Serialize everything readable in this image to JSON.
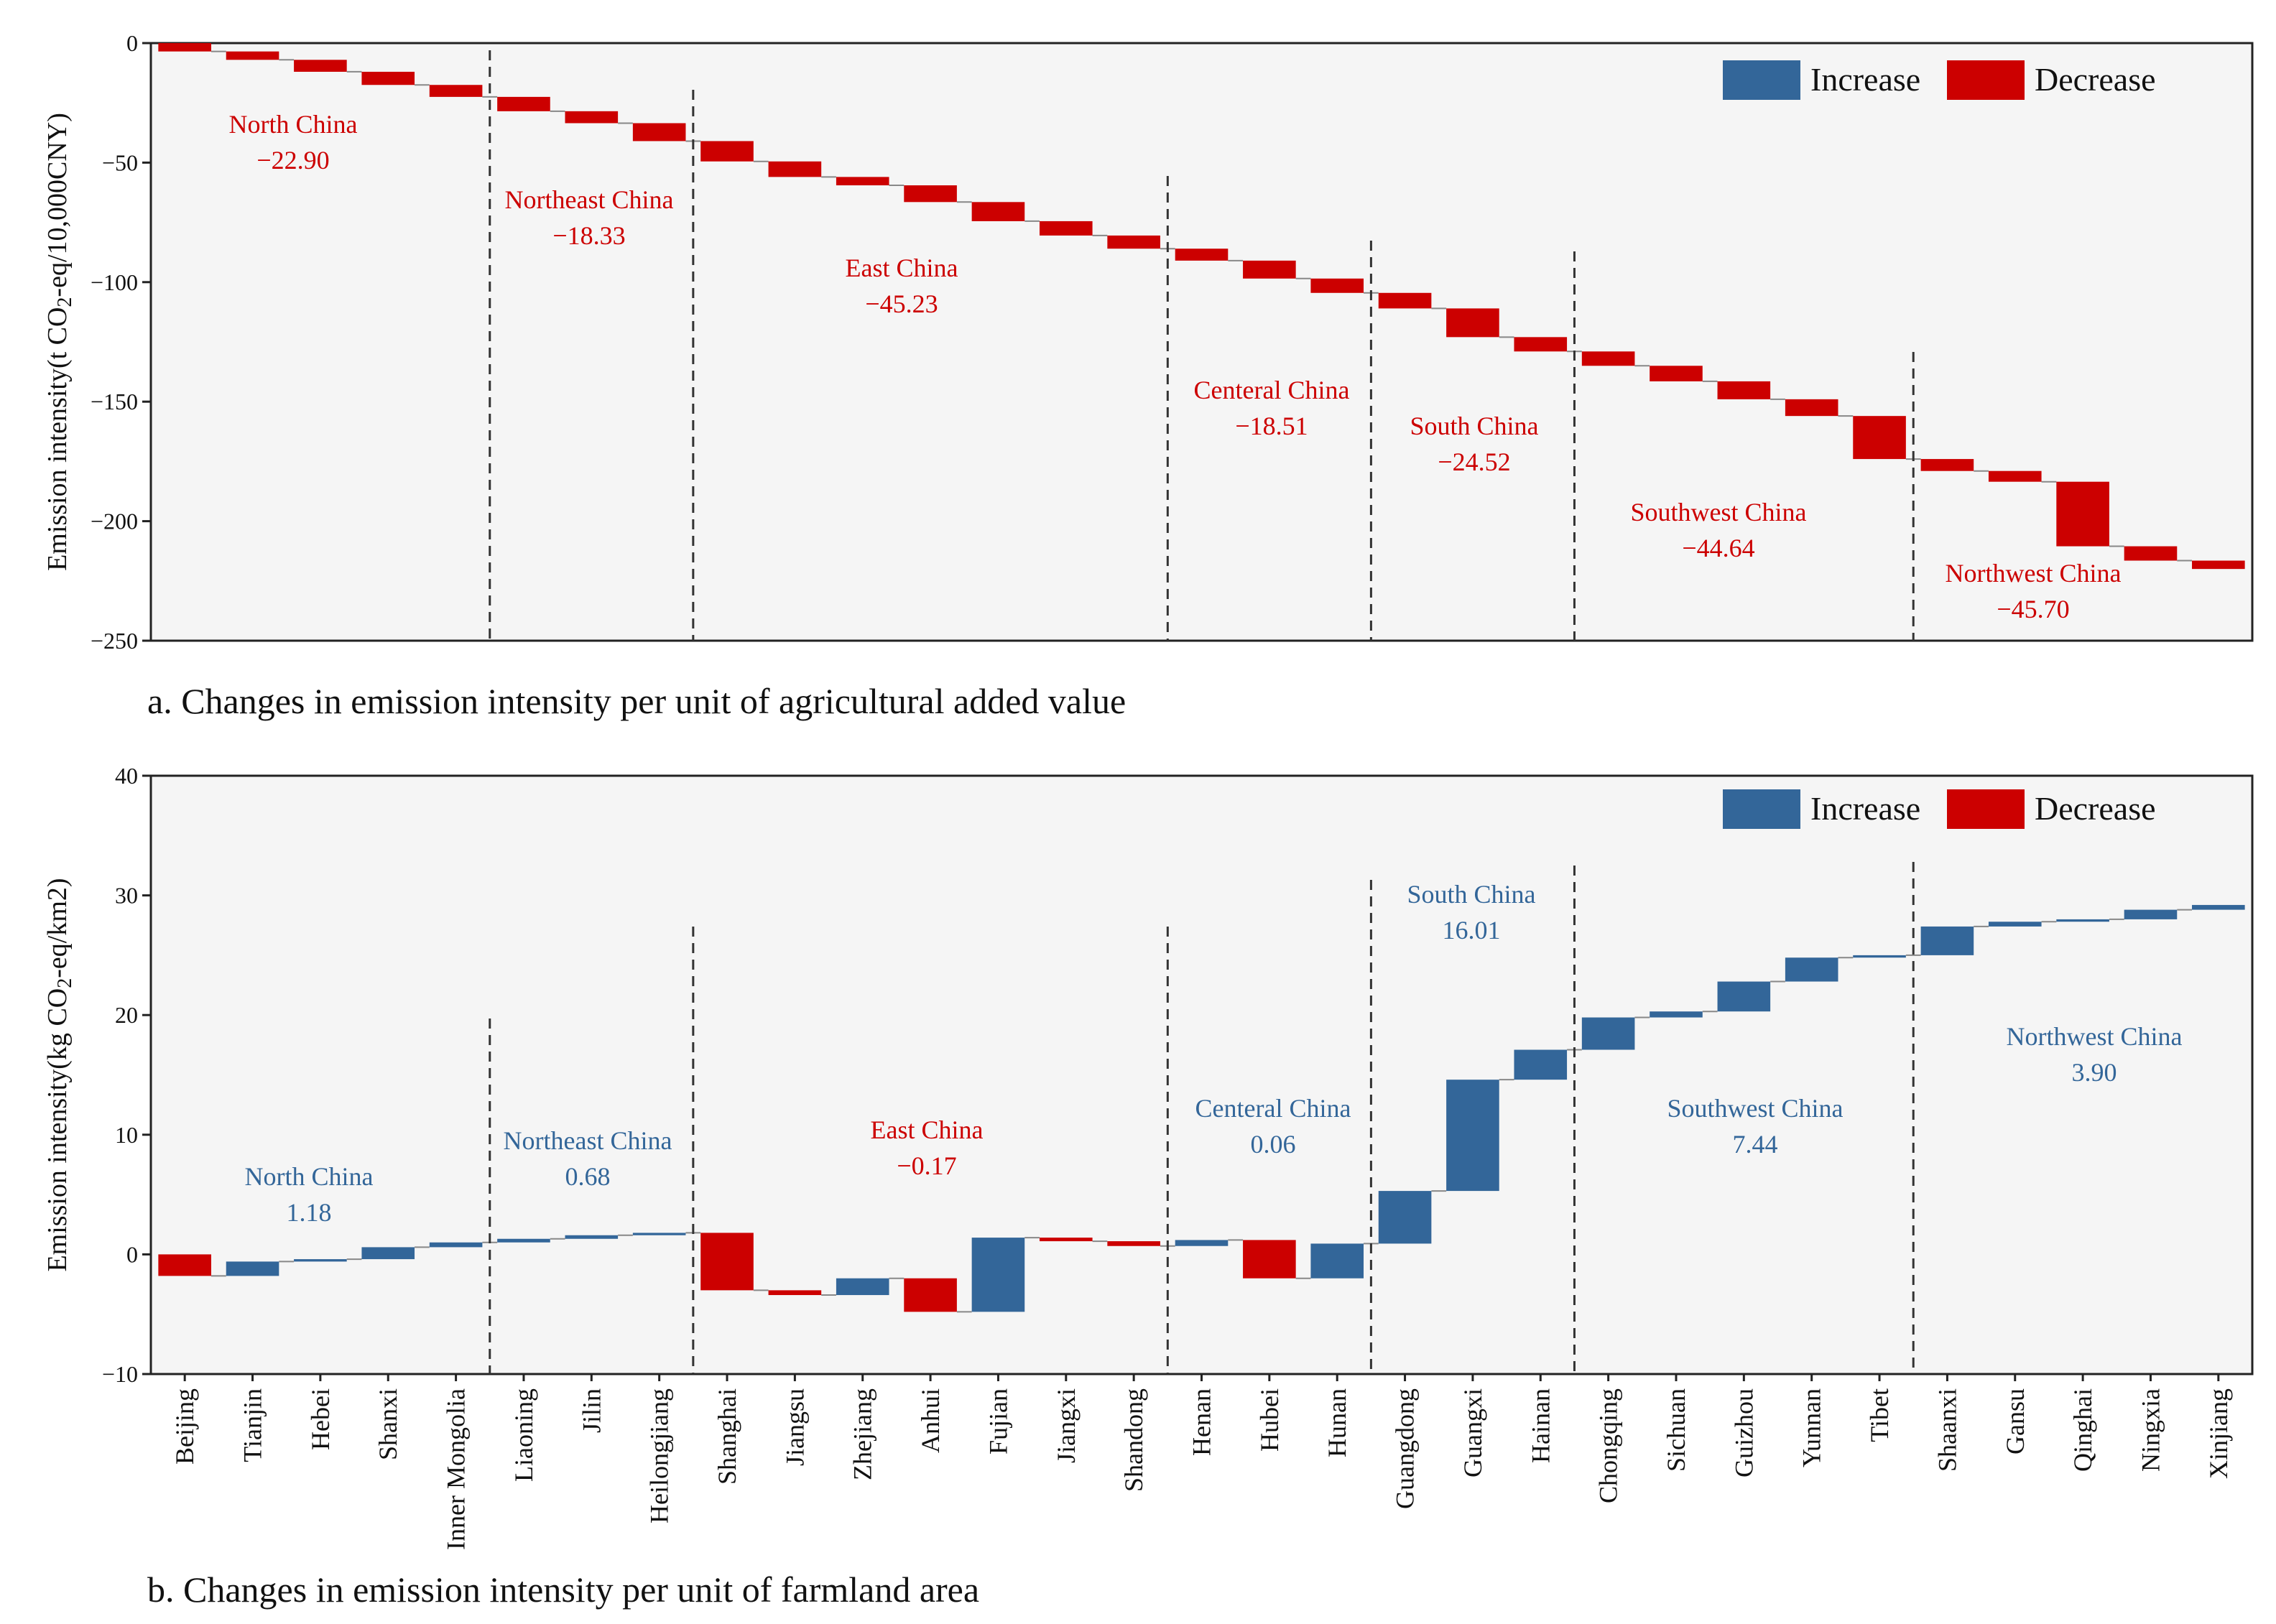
{
  "colors": {
    "increase": "#336699",
    "decrease": "#cc0000",
    "plot_bg": "#f5f5f5",
    "connector": "#888888"
  },
  "legend": {
    "increase": "Increase",
    "decrease": "Decrease"
  },
  "provinces": [
    "Beijing",
    "Tianjin",
    "Hebei",
    "Shanxi",
    "Inner Mongolia",
    "Liaoning",
    "Jilin",
    "Heilongjiang",
    "Shanghai",
    "Jiangsu",
    "Zhejiang",
    "Anhui",
    "Fujian",
    "Jiangxi",
    "Shandong",
    "Henan",
    "Hubei",
    "Hunan",
    "Guangdong",
    "Guangxi",
    "Hainan",
    "Chongqing",
    "Sichuan",
    "Guizhou",
    "Yunnan",
    "Tibet",
    "Shaanxi",
    "Gansu",
    "Qinghai",
    "Ningxia",
    "Xinjiang"
  ],
  "chart_data": [
    {
      "type": "bar",
      "subtype": "waterfall",
      "title": "a. Changes in emission intensity per unit of agricultural added value",
      "ylabel": "Emission intensity(t CO2-eq/10,000CNY)",
      "ylim": [
        -250,
        0
      ],
      "yticks": [
        0,
        -50,
        -100,
        -150,
        -200,
        -250
      ],
      "ytick_labels": [
        "0",
        "−50",
        "−100",
        "−150",
        "−200",
        "−250"
      ],
      "deltas": [
        -3.5,
        -3.5,
        -5,
        -5.5,
        -5,
        -6,
        -5,
        -7.5,
        -8.5,
        -6.5,
        -3.5,
        -7,
        -8,
        -6,
        -5.5,
        -5,
        -7.5,
        -6,
        -6.5,
        -12,
        -6,
        -6,
        -6.5,
        -7.5,
        -7,
        -18,
        -5,
        -4.5,
        -27,
        -6,
        -3.5
      ],
      "regions": [
        {
          "name": "North China",
          "value": "−22.90",
          "sign": "decrease"
        },
        {
          "name": "Northeast China",
          "value": "−18.33",
          "sign": "decrease"
        },
        {
          "name": "East China",
          "value": "−45.23",
          "sign": "decrease"
        },
        {
          "name": "Centeral China",
          "value": "−18.51",
          "sign": "decrease"
        },
        {
          "name": "South China",
          "value": "−24.52",
          "sign": "decrease"
        },
        {
          "name": "Southwest China",
          "value": "−44.64",
          "sign": "decrease"
        },
        {
          "name": "Northwest China",
          "value": "−45.70",
          "sign": "decrease"
        }
      ]
    },
    {
      "type": "bar",
      "subtype": "waterfall",
      "title": "b. Changes in emission intensity per unit of farmland area",
      "ylabel": "Emission intensity(kg CO2-eq/km2)",
      "ylim": [
        -10,
        40
      ],
      "yticks": [
        40,
        30,
        20,
        10,
        0,
        -10
      ],
      "ytick_labels": [
        "40",
        "30",
        "20",
        "10",
        "0",
        "−10"
      ],
      "deltas": [
        -1.8,
        1.2,
        0.2,
        1.0,
        0.4,
        0.3,
        0.3,
        0.2,
        -4.8,
        -0.4,
        1.4,
        -2.8,
        6.2,
        -0.3,
        -0.4,
        0.5,
        -3.2,
        2.9,
        4.4,
        9.3,
        2.5,
        2.7,
        0.5,
        2.5,
        2.0,
        0.2,
        2.4,
        0.4,
        0.2,
        0.8,
        0.4
      ],
      "regions": [
        {
          "name": "North China",
          "value": "1.18",
          "sign": "increase"
        },
        {
          "name": "Northeast China",
          "value": "0.68",
          "sign": "increase"
        },
        {
          "name": "East China",
          "value": "−0.17",
          "sign": "decrease"
        },
        {
          "name": "Centeral China",
          "value": "0.06",
          "sign": "increase"
        },
        {
          "name": "South China",
          "value": "16.01",
          "sign": "increase"
        },
        {
          "name": "Southwest China",
          "value": "7.44",
          "sign": "increase"
        },
        {
          "name": "Northwest China",
          "value": "3.90",
          "sign": "increase"
        }
      ]
    }
  ]
}
